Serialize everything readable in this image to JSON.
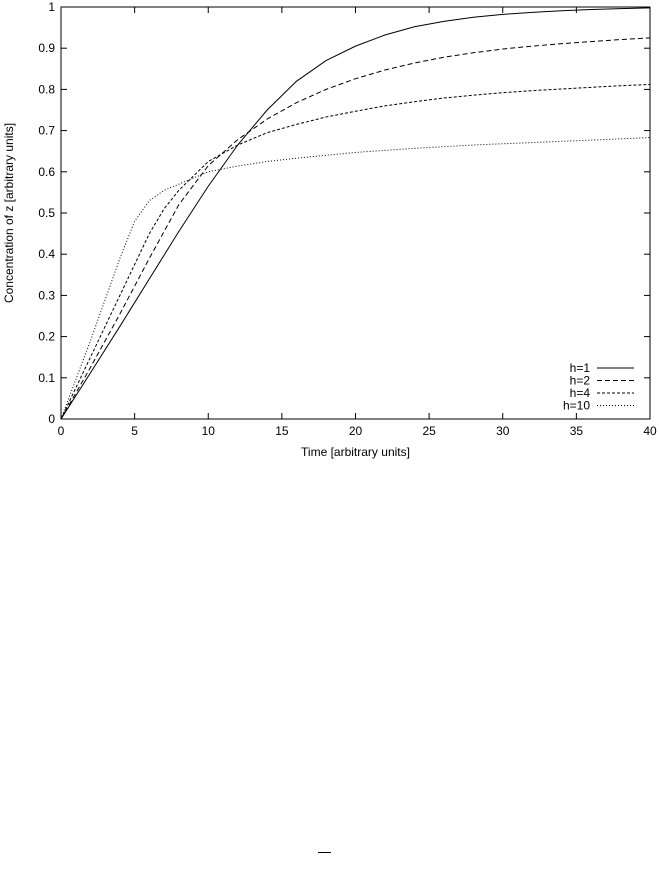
{
  "chart_data": {
    "type": "line",
    "title": "",
    "xlabel": "Time [arbitrary units]",
    "ylabel": "Concentration of z [arbitrary units]",
    "xlim": [
      0,
      40
    ],
    "ylim": [
      0,
      1
    ],
    "xticks": [
      0,
      5,
      10,
      15,
      20,
      25,
      30,
      35,
      40
    ],
    "yticks": [
      0,
      0.1,
      0.2,
      0.3,
      0.4,
      0.5,
      0.6,
      0.7,
      0.8,
      0.9,
      1
    ],
    "grid": false,
    "legend_position": "bottom-right",
    "series": [
      {
        "name": "h=1",
        "dash": "solid",
        "x": [
          0,
          2,
          4,
          6,
          8,
          10,
          12,
          14,
          16,
          18,
          20,
          22,
          24,
          26,
          28,
          30,
          32,
          34,
          36,
          38,
          40
        ],
        "y": [
          0,
          0.112,
          0.225,
          0.34,
          0.455,
          0.565,
          0.665,
          0.75,
          0.82,
          0.87,
          0.905,
          0.932,
          0.952,
          0.965,
          0.975,
          0.982,
          0.987,
          0.991,
          0.994,
          0.996,
          0.998
        ]
      },
      {
        "name": "h=2",
        "dash": "5,3",
        "x": [
          0,
          2,
          4,
          6,
          8,
          10,
          12,
          14,
          16,
          18,
          20,
          22,
          24,
          26,
          28,
          30,
          32,
          34,
          36,
          38,
          40
        ],
        "y": [
          0,
          0.125,
          0.255,
          0.39,
          0.52,
          0.615,
          0.678,
          0.728,
          0.768,
          0.8,
          0.826,
          0.847,
          0.864,
          0.878,
          0.889,
          0.898,
          0.905,
          0.911,
          0.916,
          0.921,
          0.925
        ]
      },
      {
        "name": "h=4",
        "dash": "3,2",
        "x": [
          0,
          1,
          2,
          3,
          4,
          5,
          6,
          7,
          8,
          9,
          10,
          12,
          14,
          16,
          18,
          20,
          22,
          24,
          26,
          28,
          30,
          32,
          34,
          36,
          38,
          40
        ],
        "y": [
          0,
          0.075,
          0.15,
          0.225,
          0.3,
          0.375,
          0.45,
          0.51,
          0.555,
          0.59,
          0.625,
          0.665,
          0.695,
          0.715,
          0.733,
          0.747,
          0.76,
          0.77,
          0.779,
          0.786,
          0.792,
          0.797,
          0.801,
          0.805,
          0.809,
          0.812
        ]
      },
      {
        "name": "h=10",
        "dash": "1,2",
        "x": [
          0,
          1,
          2,
          3,
          4,
          5,
          6,
          7,
          8,
          9,
          10,
          12,
          14,
          16,
          18,
          20,
          22,
          24,
          26,
          28,
          30,
          32,
          34,
          36,
          38,
          40
        ],
        "y": [
          0,
          0.095,
          0.19,
          0.29,
          0.39,
          0.48,
          0.53,
          0.555,
          0.57,
          0.585,
          0.6,
          0.614,
          0.625,
          0.633,
          0.64,
          0.647,
          0.652,
          0.657,
          0.661,
          0.665,
          0.668,
          0.671,
          0.674,
          0.677,
          0.68,
          0.683
        ]
      }
    ]
  }
}
